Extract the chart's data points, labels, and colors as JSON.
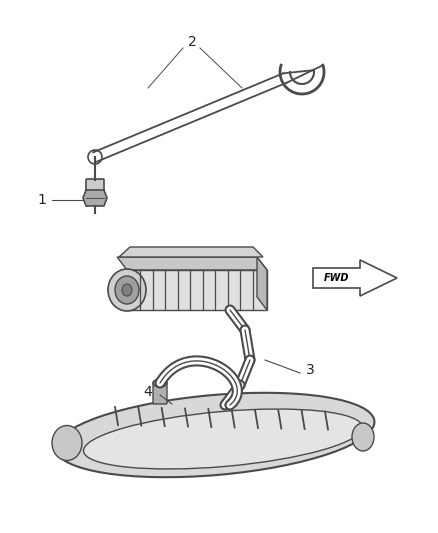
{
  "background_color": "#ffffff",
  "line_color": "#4a4a4a",
  "fill_light": "#e8e8e8",
  "fill_mid": "#d0d0d0",
  "fill_dark": "#b8b8b8",
  "figsize": [
    4.38,
    5.33
  ],
  "dpi": 100,
  "label_color": "#222222",
  "label_fontsize": 10
}
